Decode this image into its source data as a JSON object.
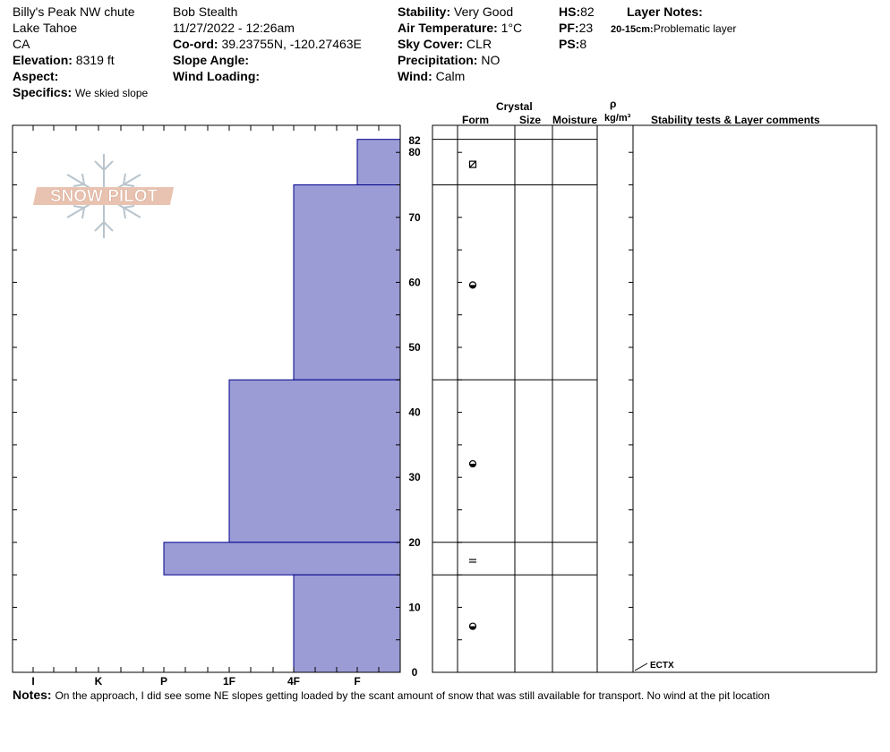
{
  "header": {
    "location": "Billy's Peak NW chute",
    "region": "Lake Tahoe",
    "state": "CA",
    "elevation_label": "Elevation:",
    "elevation_value": "8319 ft",
    "aspect_label": "Aspect:",
    "aspect_value": "",
    "specifics_label": "Specifics:",
    "specifics_value": "We skied slope",
    "observer": "Bob  Stealth",
    "datetime": "11/27/2022 - 12:26am",
    "coord_label": "Co-ord:",
    "coord_value": "39.23755N, -120.27463E",
    "slope_angle_label": "Slope Angle:",
    "slope_angle_value": "",
    "wind_loading_label": "Wind Loading:",
    "wind_loading_value": "",
    "stability_label": "Stability:",
    "stability_value": "Very Good",
    "air_temp_label": "Air Temperature:",
    "air_temp_value": "1°C",
    "sky_label": "Sky Cover:",
    "sky_value": "CLR",
    "precip_label": "Precipitation:",
    "precip_value": "NO",
    "wind_label": "Wind:",
    "wind_value": "Calm",
    "hs_label": "HS:",
    "hs_value": "82",
    "pf_label": "PF:",
    "pf_value": "23",
    "ps_label": "PS:",
    "ps_value": "8",
    "layer_notes_label": "Layer Notes:",
    "layer_note_range": "20-15cm:",
    "layer_note_text": "Problematic layer"
  },
  "logo": {
    "text": "SNOW PILOT"
  },
  "columns": {
    "crystal": "Crystal",
    "form": "Form",
    "size": "Size",
    "moisture": "Moisture",
    "rho": "ρ",
    "density_unit": "kg/m³",
    "stability": "Stability tests & Layer comments"
  },
  "notes": {
    "label": "Notes:",
    "text": "On the approach, I did see some NE slopes getting loaded by the scant amount of snow that was still available for transport. No wind at the pit location"
  },
  "chart_data": {
    "type": "bar",
    "title": "",
    "ylabel": "",
    "xlabel": "",
    "ylim": [
      0,
      84
    ],
    "y_ticks": [
      0,
      10,
      20,
      30,
      40,
      50,
      60,
      70,
      80
    ],
    "snow_height_label": "82",
    "hardness_scale": [
      "I",
      "K",
      "P",
      "1F",
      "4F",
      "F"
    ],
    "layers": [
      {
        "top": 82,
        "bottom": 75,
        "hardness": "F",
        "form": "decomposing-fragments"
      },
      {
        "top": 75,
        "bottom": 45,
        "hardness": "4F",
        "form": "rounded-faceted"
      },
      {
        "top": 45,
        "bottom": 20,
        "hardness": "1F",
        "form": "rounded-faceted"
      },
      {
        "top": 20,
        "bottom": 15,
        "hardness": "P",
        "form": "crust"
      },
      {
        "top": 15,
        "bottom": 0,
        "hardness": "4F",
        "form": "rounded-faceted"
      }
    ],
    "stability_tests": [
      {
        "label": "ECTX",
        "depth": 0
      }
    ],
    "fill_color": "#9b9bd6",
    "line_color": "#00008b"
  }
}
